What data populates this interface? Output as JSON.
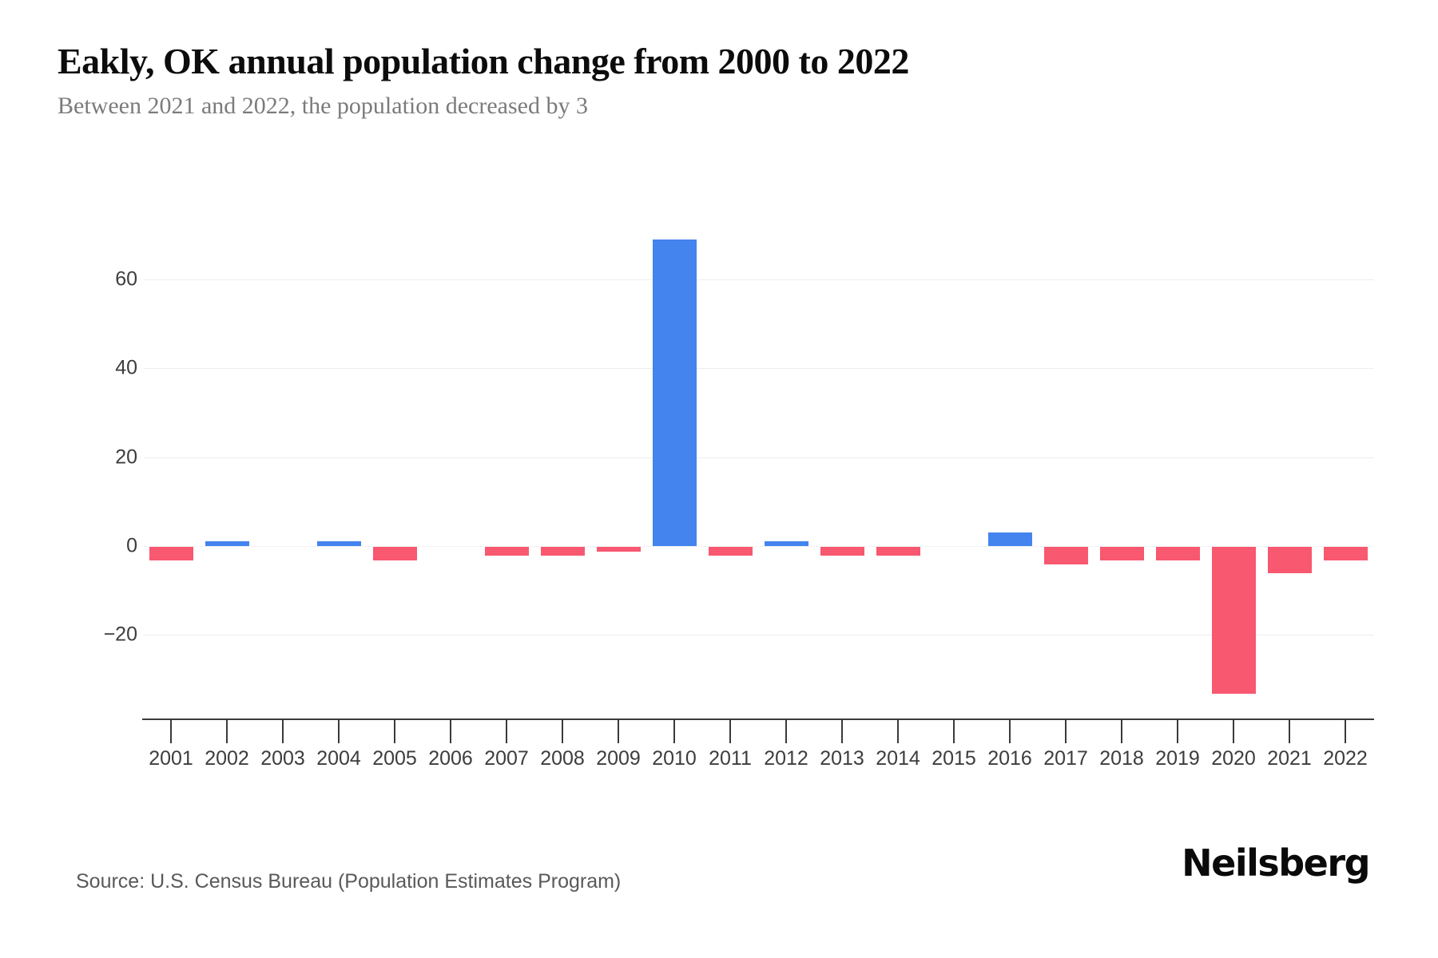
{
  "header": {
    "title": "Eakly, OK annual population change from 2000 to 2022",
    "subtitle": "Between 2021 and 2022, the population decreased by 3"
  },
  "chart_data": {
    "type": "bar",
    "title": "Eakly, OK annual population change from 2000 to 2022",
    "categories": [
      "2001",
      "2002",
      "2003",
      "2004",
      "2005",
      "2006",
      "2007",
      "2008",
      "2009",
      "2010",
      "2011",
      "2012",
      "2013",
      "2014",
      "2015",
      "2016",
      "2017",
      "2018",
      "2019",
      "2020",
      "2021",
      "2022"
    ],
    "values": [
      -3,
      1,
      0,
      1,
      -3,
      0,
      -2,
      -2,
      -1,
      69,
      -2,
      1,
      -2,
      -2,
      0,
      3,
      -4,
      -3,
      -3,
      -33,
      -6,
      -3
    ],
    "xlabel": "",
    "ylabel": "",
    "y_tick_values": [
      60,
      40,
      20,
      0,
      -20
    ],
    "y_tick_labels": [
      "60",
      "40",
      "20",
      "0",
      "−20"
    ],
    "ylim": [
      -39,
      75
    ],
    "grid": true,
    "legend": false,
    "positive_color": "#4484ee",
    "negative_color": "#f85870",
    "gridline_color": "#ededed",
    "axis_color": "#3a3a3a"
  },
  "footer": {
    "source": "Source: U.S. Census Bureau (Population Estimates Program)",
    "brand": "Neilsberg"
  }
}
